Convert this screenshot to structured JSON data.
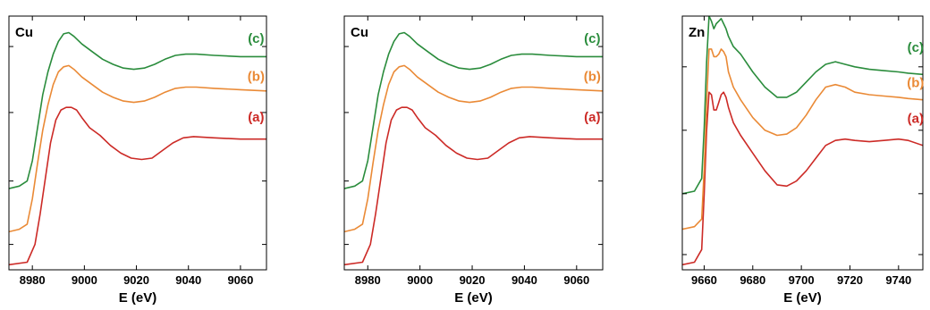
{
  "chart_data": [
    {
      "type": "line",
      "title": "Cu",
      "xlabel": "E (eV)",
      "ylabel": "",
      "xlim": [
        8971,
        9070
      ],
      "ylim": [
        0,
        1
      ],
      "xticks": [
        8980,
        9000,
        9020,
        9040,
        9060
      ],
      "yticks": [
        0.1,
        0.35,
        0.62,
        0.88
      ],
      "grid": false,
      "legend": "none",
      "series": [
        {
          "name": "(a)",
          "color": "#cc2a26",
          "label_at": [
            9066,
            0.585
          ],
          "x": [
            8971,
            8978,
            8981,
            8983,
            8985,
            8987,
            8989,
            8991,
            8993,
            8995,
            8997,
            8999,
            9002,
            9006,
            9010,
            9014,
            9018,
            9022,
            9026,
            9030,
            9034,
            9038,
            9042,
            9050,
            9060,
            9070
          ],
          "y": [
            0.02,
            0.03,
            0.1,
            0.22,
            0.36,
            0.5,
            0.59,
            0.63,
            0.64,
            0.64,
            0.63,
            0.6,
            0.56,
            0.53,
            0.49,
            0.46,
            0.44,
            0.435,
            0.44,
            0.47,
            0.5,
            0.52,
            0.525,
            0.52,
            0.515,
            0.515
          ]
        },
        {
          "name": "(b)",
          "color": "#ea8a36",
          "label_at": [
            9066,
            0.745
          ],
          "x": [
            8971,
            8975,
            8978,
            8980,
            8982,
            8984,
            8986,
            8988,
            8990,
            8992,
            8994,
            8996,
            8999,
            9003,
            9007,
            9011,
            9015,
            9019,
            9023,
            9027,
            9031,
            9035,
            9039,
            9043,
            9050,
            9060,
            9070
          ],
          "y": [
            0.15,
            0.16,
            0.18,
            0.28,
            0.42,
            0.55,
            0.65,
            0.73,
            0.78,
            0.8,
            0.805,
            0.79,
            0.76,
            0.73,
            0.7,
            0.68,
            0.665,
            0.66,
            0.665,
            0.68,
            0.7,
            0.715,
            0.72,
            0.72,
            0.715,
            0.71,
            0.705
          ]
        },
        {
          "name": "(c)",
          "color": "#2a8c3c",
          "label_at": [
            9066,
            0.895
          ],
          "x": [
            8971,
            8975,
            8978,
            8980,
            8982,
            8984,
            8986,
            8988,
            8990,
            8992,
            8994,
            8996,
            8999,
            9003,
            9007,
            9011,
            9015,
            9019,
            9023,
            9027,
            9031,
            9035,
            9039,
            9043,
            9050,
            9060,
            9070
          ],
          "y": [
            0.32,
            0.33,
            0.35,
            0.43,
            0.56,
            0.69,
            0.78,
            0.85,
            0.9,
            0.93,
            0.935,
            0.92,
            0.89,
            0.86,
            0.83,
            0.81,
            0.795,
            0.79,
            0.795,
            0.81,
            0.83,
            0.845,
            0.85,
            0.85,
            0.845,
            0.84,
            0.84
          ]
        }
      ]
    },
    {
      "type": "line",
      "title": "Cu",
      "xlabel": "E (eV)",
      "ylabel": "",
      "xlim": [
        8971,
        9070
      ],
      "ylim": [
        0,
        1
      ],
      "xticks": [
        8980,
        9000,
        9020,
        9040,
        9060
      ],
      "yticks": [
        0.1,
        0.35,
        0.62,
        0.88
      ],
      "grid": false,
      "legend": "none",
      "series": [
        {
          "name": "(a)",
          "color": "#cc2a26",
          "label_at": [
            9066,
            0.585
          ],
          "x": [
            8971,
            8978,
            8981,
            8983,
            8985,
            8987,
            8989,
            8991,
            8993,
            8995,
            8997,
            8999,
            9002,
            9006,
            9010,
            9014,
            9018,
            9022,
            9026,
            9030,
            9034,
            9038,
            9042,
            9050,
            9060,
            9070
          ],
          "y": [
            0.02,
            0.03,
            0.1,
            0.22,
            0.36,
            0.5,
            0.59,
            0.63,
            0.64,
            0.64,
            0.63,
            0.6,
            0.56,
            0.53,
            0.49,
            0.46,
            0.44,
            0.435,
            0.44,
            0.47,
            0.5,
            0.52,
            0.525,
            0.52,
            0.515,
            0.515
          ]
        },
        {
          "name": "(b)",
          "color": "#ea8a36",
          "label_at": [
            9066,
            0.745
          ],
          "x": [
            8971,
            8975,
            8978,
            8980,
            8982,
            8984,
            8986,
            8988,
            8990,
            8992,
            8994,
            8996,
            8999,
            9003,
            9007,
            9011,
            9015,
            9019,
            9023,
            9027,
            9031,
            9035,
            9039,
            9043,
            9050,
            9060,
            9070
          ],
          "y": [
            0.15,
            0.16,
            0.18,
            0.28,
            0.42,
            0.55,
            0.65,
            0.73,
            0.78,
            0.8,
            0.805,
            0.79,
            0.76,
            0.73,
            0.7,
            0.68,
            0.665,
            0.66,
            0.665,
            0.68,
            0.7,
            0.715,
            0.72,
            0.72,
            0.715,
            0.71,
            0.705
          ]
        },
        {
          "name": "(c)",
          "color": "#2a8c3c",
          "label_at": [
            9066,
            0.895
          ],
          "x": [
            8971,
            8975,
            8978,
            8980,
            8982,
            8984,
            8986,
            8988,
            8990,
            8992,
            8994,
            8996,
            8999,
            9003,
            9007,
            9011,
            9015,
            9019,
            9023,
            9027,
            9031,
            9035,
            9039,
            9043,
            9050,
            9060,
            9070
          ],
          "y": [
            0.32,
            0.33,
            0.35,
            0.43,
            0.56,
            0.69,
            0.78,
            0.85,
            0.9,
            0.93,
            0.935,
            0.92,
            0.89,
            0.86,
            0.83,
            0.81,
            0.795,
            0.79,
            0.795,
            0.81,
            0.83,
            0.845,
            0.85,
            0.85,
            0.845,
            0.84,
            0.84
          ]
        }
      ]
    },
    {
      "type": "line",
      "title": "Zn",
      "xlabel": "E (eV)",
      "ylabel": "",
      "xlim": [
        9651,
        9750
      ],
      "ylim": [
        0,
        1
      ],
      "xticks": [
        9660,
        9680,
        9700,
        9720,
        9740
      ],
      "yticks": [
        0.06,
        0.3,
        0.55,
        0.8
      ],
      "grid": false,
      "legend": "none",
      "series": [
        {
          "name": "(a)",
          "color": "#cc2a26",
          "label_at": [
            9747,
            0.58
          ],
          "x": [
            9651,
            9656,
            9659,
            9660,
            9661,
            9662,
            9663,
            9664,
            9665,
            9666,
            9667,
            9668,
            9669,
            9670,
            9672,
            9675,
            9680,
            9685,
            9690,
            9694,
            9698,
            9702,
            9706,
            9710,
            9714,
            9718,
            9722,
            9728,
            9734,
            9740,
            9744,
            9750
          ],
          "y": [
            0.02,
            0.03,
            0.08,
            0.3,
            0.55,
            0.7,
            0.69,
            0.63,
            0.63,
            0.66,
            0.69,
            0.7,
            0.68,
            0.64,
            0.58,
            0.53,
            0.46,
            0.39,
            0.335,
            0.33,
            0.35,
            0.39,
            0.44,
            0.49,
            0.51,
            0.515,
            0.51,
            0.505,
            0.51,
            0.515,
            0.51,
            0.49
          ]
        },
        {
          "name": "(b)",
          "color": "#ea8a36",
          "label_at": [
            9747,
            0.72
          ],
          "x": [
            9651,
            9656,
            9659,
            9660,
            9661,
            9662,
            9663,
            9664,
            9665,
            9666,
            9667,
            9668,
            9669,
            9670,
            9672,
            9675,
            9680,
            9685,
            9690,
            9694,
            9698,
            9702,
            9706,
            9710,
            9714,
            9718,
            9722,
            9728,
            9734,
            9740,
            9744,
            9750
          ],
          "y": [
            0.16,
            0.17,
            0.2,
            0.4,
            0.66,
            0.87,
            0.87,
            0.84,
            0.84,
            0.85,
            0.87,
            0.86,
            0.84,
            0.78,
            0.72,
            0.67,
            0.6,
            0.55,
            0.53,
            0.535,
            0.56,
            0.61,
            0.67,
            0.72,
            0.73,
            0.72,
            0.7,
            0.69,
            0.685,
            0.68,
            0.675,
            0.67
          ]
        },
        {
          "name": "(c)",
          "color": "#2a8c3c",
          "label_at": [
            9747,
            0.86
          ],
          "x": [
            9651,
            9656,
            9659,
            9660,
            9661,
            9662,
            9663,
            9664,
            9665,
            9666,
            9667,
            9668,
            9669,
            9670,
            9672,
            9675,
            9680,
            9685,
            9690,
            9694,
            9698,
            9702,
            9706,
            9710,
            9714,
            9718,
            9722,
            9728,
            9734,
            9740,
            9744,
            9750
          ],
          "y": [
            0.3,
            0.31,
            0.36,
            0.56,
            0.82,
            1.0,
            0.98,
            0.95,
            0.97,
            0.98,
            0.99,
            0.97,
            0.95,
            0.92,
            0.88,
            0.85,
            0.78,
            0.72,
            0.68,
            0.68,
            0.7,
            0.74,
            0.78,
            0.81,
            0.82,
            0.81,
            0.8,
            0.79,
            0.785,
            0.78,
            0.775,
            0.77
          ]
        }
      ]
    }
  ]
}
